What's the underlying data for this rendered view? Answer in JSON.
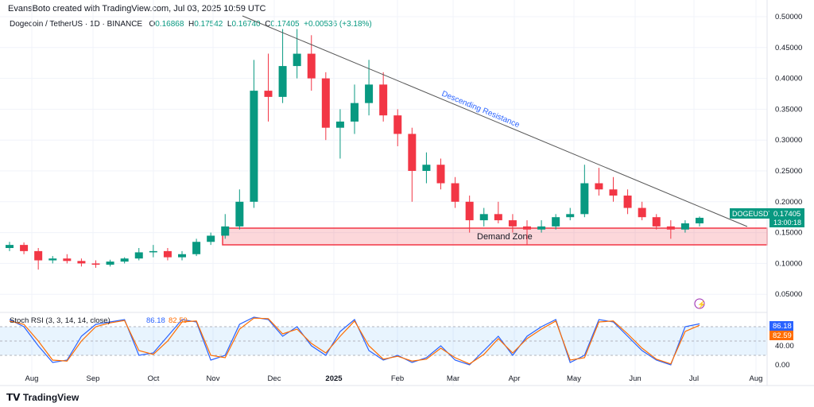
{
  "header": {
    "credit": "EvansBoto created with TradingView.com, Jul 03, 2025 10:59 UTC",
    "symbol": "Dogecoin / TetherUS · 1D · BINANCE",
    "o_label": "O",
    "o": "0.16868",
    "h_label": "H",
    "h": "0.17542",
    "l_label": "L",
    "l": "0.16740",
    "c_label": "C",
    "c": "0.17405",
    "change": "+0.00536 (+3.18%)"
  },
  "price_tag": {
    "symbol": "DOGEUSDT",
    "price": "0.17405",
    "countdown": "13:00:18"
  },
  "annotations": {
    "trendline": "Descending Resistance",
    "zone": "Demand Zone",
    "zone_range": [
      0.13,
      0.158
    ]
  },
  "footer": {
    "logo": "TradingView"
  },
  "colors": {
    "up": "#089981",
    "down": "#f23645",
    "k": "#2962ff",
    "d": "#ff6d00",
    "zone": "#f23645"
  },
  "chart_data": [
    {
      "type": "candlestick",
      "title": "Dogecoin / TetherUS · 1D · BINANCE",
      "ylim": [
        0,
        0.5
      ],
      "y_ticks": [
        "0.50000",
        "0.45000",
        "0.40000",
        "0.35000",
        "0.30000",
        "0.25000",
        "0.20000",
        "0.15000",
        "0.10000",
        "0.05000"
      ],
      "x_ticks": [
        "Aug",
        "Sep",
        "Oct",
        "Nov",
        "Dec",
        "2025",
        "Feb",
        "Mar",
        "Apr",
        "May",
        "Jun",
        "Jul",
        "Aug"
      ],
      "grid": true,
      "candles": [
        [
          0.125,
          0.135,
          0.12,
          0.13
        ],
        [
          0.13,
          0.134,
          0.115,
          0.12
        ],
        [
          0.12,
          0.125,
          0.09,
          0.105
        ],
        [
          0.105,
          0.112,
          0.1,
          0.108
        ],
        [
          0.108,
          0.115,
          0.1,
          0.104
        ],
        [
          0.104,
          0.108,
          0.095,
          0.1
        ],
        [
          0.1,
          0.105,
          0.093,
          0.098
        ],
        [
          0.098,
          0.106,
          0.095,
          0.103
        ],
        [
          0.103,
          0.11,
          0.1,
          0.108
        ],
        [
          0.108,
          0.125,
          0.105,
          0.118
        ],
        [
          0.118,
          0.13,
          0.11,
          0.12
        ],
        [
          0.12,
          0.125,
          0.105,
          0.11
        ],
        [
          0.11,
          0.12,
          0.105,
          0.115
        ],
        [
          0.115,
          0.14,
          0.112,
          0.135
        ],
        [
          0.135,
          0.15,
          0.13,
          0.145
        ],
        [
          0.145,
          0.18,
          0.14,
          0.16
        ],
        [
          0.16,
          0.22,
          0.155,
          0.2
        ],
        [
          0.2,
          0.43,
          0.19,
          0.38
        ],
        [
          0.38,
          0.44,
          0.33,
          0.37
        ],
        [
          0.37,
          0.48,
          0.36,
          0.42
        ],
        [
          0.42,
          0.48,
          0.4,
          0.44
        ],
        [
          0.44,
          0.47,
          0.38,
          0.4
        ],
        [
          0.4,
          0.41,
          0.3,
          0.32
        ],
        [
          0.32,
          0.35,
          0.27,
          0.33
        ],
        [
          0.33,
          0.39,
          0.31,
          0.36
        ],
        [
          0.36,
          0.43,
          0.34,
          0.39
        ],
        [
          0.39,
          0.41,
          0.33,
          0.34
        ],
        [
          0.34,
          0.35,
          0.29,
          0.31
        ],
        [
          0.31,
          0.32,
          0.2,
          0.25
        ],
        [
          0.25,
          0.28,
          0.23,
          0.26
        ],
        [
          0.26,
          0.27,
          0.22,
          0.23
        ],
        [
          0.23,
          0.24,
          0.19,
          0.2
        ],
        [
          0.2,
          0.21,
          0.15,
          0.17
        ],
        [
          0.17,
          0.19,
          0.16,
          0.18
        ],
        [
          0.18,
          0.2,
          0.165,
          0.17
        ],
        [
          0.17,
          0.18,
          0.15,
          0.16
        ],
        [
          0.16,
          0.17,
          0.13,
          0.155
        ],
        [
          0.155,
          0.17,
          0.15,
          0.16
        ],
        [
          0.16,
          0.18,
          0.155,
          0.175
        ],
        [
          0.175,
          0.19,
          0.17,
          0.18
        ],
        [
          0.18,
          0.26,
          0.175,
          0.23
        ],
        [
          0.23,
          0.255,
          0.21,
          0.22
        ],
        [
          0.22,
          0.24,
          0.2,
          0.21
        ],
        [
          0.21,
          0.22,
          0.18,
          0.19
        ],
        [
          0.19,
          0.2,
          0.17,
          0.175
        ],
        [
          0.175,
          0.18,
          0.155,
          0.16
        ],
        [
          0.16,
          0.17,
          0.14,
          0.155
        ],
        [
          0.155,
          0.17,
          0.15,
          0.165
        ],
        [
          0.165,
          0.176,
          0.16,
          0.174
        ]
      ]
    },
    {
      "type": "line",
      "title": "Stoch RSI (3, 3, 14, 14, close)",
      "ylim": [
        0,
        100
      ],
      "y_ticks": [
        "40.00",
        "0.00"
      ],
      "bands": [
        20,
        50,
        80
      ],
      "series": [
        {
          "name": "K",
          "last": "86.18",
          "values": [
            95,
            80,
            40,
            5,
            10,
            60,
            85,
            90,
            95,
            20,
            25,
            60,
            95,
            90,
            10,
            20,
            85,
            100,
            95,
            60,
            80,
            40,
            20,
            70,
            95,
            30,
            10,
            20,
            5,
            15,
            40,
            10,
            0,
            30,
            60,
            20,
            60,
            80,
            95,
            5,
            20,
            95,
            90,
            60,
            30,
            10,
            0,
            80,
            86
          ]
        },
        {
          "name": "D",
          "last": "82.59",
          "values": [
            92,
            85,
            50,
            10,
            8,
            50,
            80,
            88,
            93,
            30,
            22,
            50,
            90,
            92,
            20,
            15,
            75,
            98,
            97,
            65,
            75,
            45,
            25,
            60,
            92,
            40,
            12,
            18,
            8,
            12,
            35,
            15,
            2,
            22,
            55,
            25,
            55,
            75,
            92,
            10,
            15,
            90,
            92,
            65,
            35,
            12,
            2,
            70,
            83
          ]
        }
      ]
    }
  ]
}
